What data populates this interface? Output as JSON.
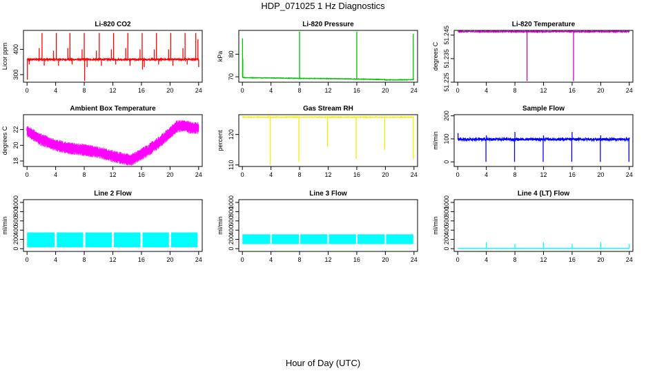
{
  "title": "HDP_071025  1 Hz Diagnostics",
  "xlabel": "Hour of Day (UTC)",
  "chart_data": [
    {
      "id": "li820-co2",
      "type": "line",
      "title": "Li-820 CO2",
      "ylabel": "Licor ppm",
      "color": "#ff0000",
      "xlim": [
        -0.5,
        24.5
      ],
      "ylim": [
        270,
        475
      ],
      "xticks": [
        0,
        4,
        8,
        12,
        16,
        20,
        24
      ],
      "yticks": [
        300,
        400
      ],
      "xticklabels": [
        "0",
        "4",
        "8",
        "12",
        "16",
        "20",
        "24"
      ],
      "yticklabels": [
        "300",
        "400"
      ],
      "series": [
        {
          "baseline": 360,
          "noise": 3,
          "spikes": [
            {
              "x": 0.05,
              "y": 280
            },
            {
              "x": 0.3,
              "y": 340
            },
            {
              "x": 1.7,
              "y": 405
            },
            {
              "x": 2.1,
              "y": 465
            },
            {
              "x": 2.4,
              "y": 335
            },
            {
              "x": 3.7,
              "y": 395
            },
            {
              "x": 4.1,
              "y": 465
            },
            {
              "x": 4.4,
              "y": 335
            },
            {
              "x": 5.7,
              "y": 405
            },
            {
              "x": 6.0,
              "y": 465
            },
            {
              "x": 6.3,
              "y": 340
            },
            {
              "x": 7.7,
              "y": 400
            },
            {
              "x": 8.0,
              "y": 465
            },
            {
              "x": 8.05,
              "y": 275
            },
            {
              "x": 8.4,
              "y": 330
            },
            {
              "x": 9.7,
              "y": 395
            },
            {
              "x": 10.1,
              "y": 465
            },
            {
              "x": 10.4,
              "y": 335
            },
            {
              "x": 11.8,
              "y": 400
            },
            {
              "x": 12.1,
              "y": 465
            },
            {
              "x": 12.4,
              "y": 340
            },
            {
              "x": 13.8,
              "y": 405
            },
            {
              "x": 14.1,
              "y": 465
            },
            {
              "x": 14.4,
              "y": 335
            },
            {
              "x": 15.8,
              "y": 400
            },
            {
              "x": 16.1,
              "y": 465
            },
            {
              "x": 16.15,
              "y": 320
            },
            {
              "x": 16.4,
              "y": 330
            },
            {
              "x": 17.8,
              "y": 400
            },
            {
              "x": 18.1,
              "y": 465
            },
            {
              "x": 18.4,
              "y": 340
            },
            {
              "x": 19.8,
              "y": 400
            },
            {
              "x": 20.1,
              "y": 465
            },
            {
              "x": 20.4,
              "y": 335
            },
            {
              "x": 21.8,
              "y": 405
            },
            {
              "x": 22.1,
              "y": 465
            },
            {
              "x": 22.4,
              "y": 340
            },
            {
              "x": 23.6,
              "y": 465
            },
            {
              "x": 23.9,
              "y": 440
            },
            {
              "x": 24.0,
              "y": 330
            }
          ]
        }
      ]
    },
    {
      "id": "li820-pressure",
      "type": "line",
      "title": "Li-820 Pressure",
      "ylabel": "kPa",
      "color": "#00c000",
      "xlim": [
        -0.5,
        24.5
      ],
      "ylim": [
        67.6,
        90.5
      ],
      "xticks": [
        0,
        4,
        8,
        12,
        16,
        20,
        24
      ],
      "yticks": [
        70,
        80
      ],
      "xticklabels": [
        "0",
        "4",
        "8",
        "12",
        "16",
        "20",
        "24"
      ],
      "yticklabels": [
        "70",
        "80"
      ],
      "series": [
        {
          "x": [
            0,
            0.3,
            4,
            8,
            12,
            16,
            19.9,
            20,
            24
          ],
          "y": [
            69.8,
            69.6,
            69.5,
            69.3,
            69.2,
            69.0,
            68.8,
            68.6,
            68.7
          ],
          "noise": 0.1,
          "spikes": [
            {
              "x": 0.02,
              "y": 87
            },
            {
              "x": 0.06,
              "y": 78
            },
            {
              "x": 8.0,
              "y": 90
            },
            {
              "x": 16.0,
              "y": 90
            },
            {
              "x": 23.9,
              "y": 89
            }
          ]
        }
      ]
    },
    {
      "id": "li820-temperature",
      "type": "line",
      "title": "Li-820 Temperature",
      "ylabel": "degrees C",
      "color": "#cc00cc",
      "xlim": [
        -0.5,
        24.5
      ],
      "ylim": [
        51.225,
        51.247
      ],
      "xticks": [
        0,
        4,
        8,
        12,
        16,
        20,
        24
      ],
      "yticks": [
        51.225,
        51.235,
        51.245
      ],
      "xticklabels": [
        "0",
        "4",
        "8",
        "12",
        "16",
        "20",
        "24"
      ],
      "yticklabels": [
        "51.225",
        "51.235",
        "51.245"
      ],
      "series": [
        {
          "baseline": 51.2465,
          "noise": 0.0002,
          "spikes": [
            {
              "x": 9.7,
              "y": 51.2255
            },
            {
              "x": 16.2,
              "y": 51.2255
            }
          ]
        }
      ]
    },
    {
      "id": "ambient-box-temperature",
      "type": "line",
      "title": "Ambient Box Temperature",
      "ylabel": "degrees C",
      "color": "#ff00ff",
      "xlim": [
        -0.5,
        24.5
      ],
      "ylim": [
        17.3,
        23.9
      ],
      "xticks": [
        0,
        4,
        8,
        12,
        16,
        20,
        24
      ],
      "yticks": [
        18,
        20,
        22
      ],
      "xticklabels": [
        "0",
        "4",
        "8",
        "12",
        "16",
        "20",
        "24"
      ],
      "yticklabels": [
        "18",
        "20",
        "22"
      ],
      "series": [
        {
          "x": [
            0,
            2,
            4,
            6,
            8,
            10,
            12,
            13.5,
            14.5,
            15.5,
            17,
            18.5,
            20,
            21,
            22,
            23,
            24
          ],
          "y": [
            21.8,
            20.7,
            20.0,
            19.6,
            19.4,
            19.1,
            18.6,
            18.3,
            18.1,
            18.6,
            19.4,
            20.4,
            21.6,
            22.4,
            22.5,
            22.2,
            22.2
          ],
          "noise": 0.6
        }
      ]
    },
    {
      "id": "gas-stream-rh",
      "type": "line",
      "title": "Gas Stream RH",
      "ylabel": "percent",
      "color": "#f0f000",
      "xlim": [
        -0.5,
        24.5
      ],
      "ylim": [
        109.5,
        126.5
      ],
      "xticks": [
        0,
        4,
        8,
        12,
        16,
        20,
        24
      ],
      "yticks": [
        110,
        120
      ],
      "xticklabels": [
        "0",
        "4",
        "8",
        "12",
        "16",
        "20",
        "24"
      ],
      "yticklabels": [
        "110",
        "120"
      ],
      "series": [
        {
          "baseline": 125.7,
          "noise": 0.1,
          "spikes": [
            {
              "x": 3.9,
              "y": 110
            },
            {
              "x": 7.9,
              "y": 111
            },
            {
              "x": 11.9,
              "y": 116
            },
            {
              "x": 15.9,
              "y": 112
            },
            {
              "x": 19.9,
              "y": 115
            },
            {
              "x": 23.9,
              "y": 112
            }
          ]
        }
      ]
    },
    {
      "id": "sample-flow",
      "type": "line",
      "title": "Sample Flow",
      "ylabel": "ml/min",
      "color": "#0000ff",
      "xlim": [
        -0.5,
        24.5
      ],
      "ylim": [
        -20,
        205
      ],
      "xticks": [
        0,
        4,
        8,
        12,
        16,
        20,
        24
      ],
      "yticks": [
        0,
        100,
        200
      ],
      "xticklabels": [
        "0",
        "4",
        "8",
        "12",
        "16",
        "20",
        "24"
      ],
      "yticklabels": [
        "0",
        "100",
        "200"
      ],
      "series": [
        {
          "baseline": 98,
          "noise": 5,
          "spikes": [
            {
              "x": 0.05,
              "y": 125
            },
            {
              "x": 3.95,
              "y": 0
            },
            {
              "x": 4.0,
              "y": 115
            },
            {
              "x": 7.95,
              "y": 0
            },
            {
              "x": 8.0,
              "y": 130
            },
            {
              "x": 11.95,
              "y": 0
            },
            {
              "x": 12.0,
              "y": 115
            },
            {
              "x": 15.95,
              "y": 0
            },
            {
              "x": 16.0,
              "y": 130
            },
            {
              "x": 19.95,
              "y": 0
            },
            {
              "x": 20.0,
              "y": 115
            },
            {
              "x": 23.95,
              "y": 0
            },
            {
              "x": 24.0,
              "y": 105
            }
          ]
        }
      ]
    },
    {
      "id": "line-2-flow",
      "type": "line",
      "title": "Line 2 Flow",
      "ylabel": "ml/min",
      "color": "#00ffff",
      "xlim": [
        -0.5,
        24.5
      ],
      "ylim": [
        -60,
        1060
      ],
      "xticks": [
        0,
        4,
        8,
        12,
        16,
        20,
        24
      ],
      "yticks": [
        0,
        200,
        400,
        600,
        800,
        1000
      ],
      "xticklabels": [
        "0",
        "4",
        "8",
        "12",
        "16",
        "20",
        "24"
      ],
      "yticklabels": [
        "0",
        "200",
        "400",
        "600",
        "800",
        "1000"
      ],
      "series": [
        {
          "band": [
            [
              0.0,
              3.85
            ],
            [
              4.15,
              7.85
            ],
            [
              8.15,
              11.85
            ],
            [
              12.15,
              15.85
            ],
            [
              16.15,
              19.85
            ],
            [
              20.15,
              23.85
            ]
          ],
          "low": 30,
          "high": 350
        }
      ]
    },
    {
      "id": "line-3-flow",
      "type": "line",
      "title": "Line 3 Flow",
      "ylabel": "ml/min",
      "color": "#00ffff",
      "xlim": [
        -0.5,
        24.5
      ],
      "ylim": [
        -60,
        1060
      ],
      "xticks": [
        0,
        4,
        8,
        12,
        16,
        20,
        24
      ],
      "yticks": [
        0,
        200,
        400,
        600,
        800,
        1000
      ],
      "xticklabels": [
        "0",
        "4",
        "8",
        "12",
        "16",
        "20",
        "24"
      ],
      "yticklabels": [
        "0",
        "200",
        "400",
        "600",
        "800",
        "1000"
      ],
      "series": [
        {
          "band": [
            [
              0.0,
              3.9
            ],
            [
              4.1,
              7.9
            ],
            [
              8.1,
              11.9
            ],
            [
              12.1,
              15.9
            ],
            [
              16.1,
              19.9
            ],
            [
              20.1,
              23.9
            ]
          ],
          "low": 100,
          "high": 310
        }
      ]
    },
    {
      "id": "line-4-lt-flow",
      "type": "line",
      "title": "Line 4 (LT) Flow",
      "ylabel": "ml/min",
      "color": "#00ffff",
      "xlim": [
        -0.5,
        24.5
      ],
      "ylim": [
        -60,
        1060
      ],
      "xticks": [
        0,
        4,
        8,
        12,
        16,
        20,
        24
      ],
      "yticks": [
        0,
        200,
        400,
        600,
        800,
        1000
      ],
      "xticklabels": [
        "0",
        "4",
        "8",
        "12",
        "16",
        "20",
        "24"
      ],
      "yticklabels": [
        "0",
        "200",
        "400",
        "600",
        "800",
        "1000"
      ],
      "series": [
        {
          "baseline": 5,
          "noise": 2,
          "spikes": [
            {
              "x": 4.0,
              "y": 140
            },
            {
              "x": 8.0,
              "y": 100
            },
            {
              "x": 12.0,
              "y": 140
            },
            {
              "x": 16.0,
              "y": 100
            },
            {
              "x": 20.0,
              "y": 140
            },
            {
              "x": 24.0,
              "y": 100
            }
          ]
        }
      ]
    }
  ]
}
